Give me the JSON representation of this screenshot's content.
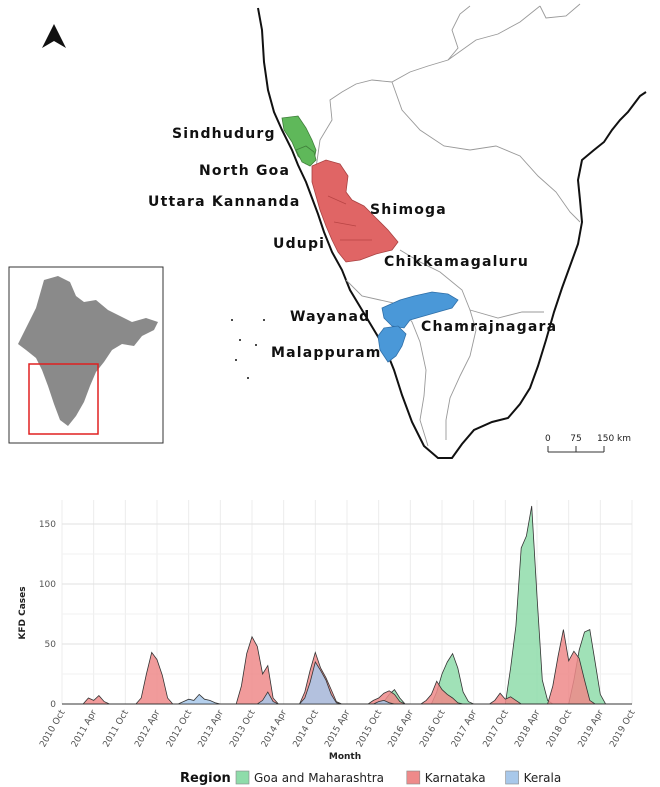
{
  "map": {
    "district_labels": {
      "sindhudurg": "Sindhudurg",
      "north_goa": "North Goa",
      "uttara_kannada": "Uttara Kannanda",
      "shimoga": "Shimoga",
      "udupi": "Udupi",
      "chikkamagaluru": "Chikkamagaluru",
      "wayanad": "Wayanad",
      "chamrajnagara": "Chamrajnagara",
      "malappuram": "Malappuram"
    },
    "scale_bar": {
      "ticks": [
        "0",
        "75",
        "150 km"
      ]
    },
    "colors": {
      "goa_maharashtra": "#5fb85a",
      "karnataka": "#e06565",
      "kerala": "#4a98d8",
      "inset_frame": "#e02020",
      "india_fill": "#8a8a8a"
    }
  },
  "chart_data": {
    "type": "area",
    "xlabel": "Month",
    "ylabel": "KFD Cases",
    "ylim": [
      0,
      170
    ],
    "y_ticks": [
      "0",
      "50",
      "100",
      "150"
    ],
    "x_ticks": [
      "2010 Oct",
      "2011 Apr",
      "2011 Oct",
      "2012 Apr",
      "2012 Oct",
      "2013 Apr",
      "2013 Oct",
      "2014 Apr",
      "2014 Oct",
      "2015 Apr",
      "2015 Oct",
      "2016 Apr",
      "2016 Oct",
      "2017 Apr",
      "2017 Oct",
      "2018 Apr",
      "2018 Oct",
      "2019 Apr",
      "2019 Oct"
    ],
    "x_unit": "month index from 2010 Oct (0) to 2019 Oct (108)",
    "legend_title": "Region",
    "legend_position": "bottom",
    "grid": true,
    "series": [
      {
        "name": "Goa and Maharashtra",
        "color": "#8fdcaa",
        "points": [
          [
            0,
            0
          ],
          [
            60,
            0
          ],
          [
            61,
            2
          ],
          [
            62,
            8
          ],
          [
            63,
            12
          ],
          [
            64,
            5
          ],
          [
            65,
            0
          ],
          [
            70,
            0
          ],
          [
            71,
            10
          ],
          [
            72,
            25
          ],
          [
            73,
            35
          ],
          [
            74,
            42
          ],
          [
            75,
            30
          ],
          [
            76,
            10
          ],
          [
            77,
            2
          ],
          [
            78,
            0
          ],
          [
            84,
            0
          ],
          [
            85,
            30
          ],
          [
            86,
            65
          ],
          [
            87,
            130
          ],
          [
            88,
            140
          ],
          [
            89,
            165
          ],
          [
            90,
            90
          ],
          [
            91,
            20
          ],
          [
            92,
            3
          ],
          [
            93,
            0
          ],
          [
            96,
            0
          ],
          [
            97,
            20
          ],
          [
            98,
            45
          ],
          [
            99,
            60
          ],
          [
            100,
            62
          ],
          [
            101,
            35
          ],
          [
            102,
            8
          ],
          [
            103,
            0
          ],
          [
            108,
            0
          ]
        ]
      },
      {
        "name": "Karnataka",
        "color": "#ee8a8a",
        "points": [
          [
            0,
            0
          ],
          [
            4,
            0
          ],
          [
            5,
            5
          ],
          [
            6,
            3
          ],
          [
            7,
            7
          ],
          [
            8,
            2
          ],
          [
            9,
            0
          ],
          [
            14,
            0
          ],
          [
            15,
            5
          ],
          [
            16,
            25
          ],
          [
            17,
            43
          ],
          [
            18,
            37
          ],
          [
            19,
            24
          ],
          [
            20,
            5
          ],
          [
            21,
            0
          ],
          [
            33,
            0
          ],
          [
            34,
            15
          ],
          [
            35,
            42
          ],
          [
            36,
            56
          ],
          [
            37,
            48
          ],
          [
            38,
            25
          ],
          [
            39,
            32
          ],
          [
            40,
            5
          ],
          [
            41,
            0
          ],
          [
            45,
            0
          ],
          [
            46,
            10
          ],
          [
            47,
            28
          ],
          [
            48,
            43
          ],
          [
            49,
            30
          ],
          [
            50,
            22
          ],
          [
            51,
            12
          ],
          [
            52,
            2
          ],
          [
            53,
            0
          ],
          [
            58,
            0
          ],
          [
            59,
            3
          ],
          [
            60,
            5
          ],
          [
            61,
            9
          ],
          [
            62,
            11
          ],
          [
            63,
            8
          ],
          [
            64,
            2
          ],
          [
            65,
            0
          ],
          [
            68,
            0
          ],
          [
            69,
            3
          ],
          [
            70,
            8
          ],
          [
            71,
            19
          ],
          [
            72,
            12
          ],
          [
            73,
            8
          ],
          [
            74,
            5
          ],
          [
            75,
            1
          ],
          [
            76,
            0
          ],
          [
            81,
            0
          ],
          [
            82,
            3
          ],
          [
            83,
            9
          ],
          [
            84,
            4
          ],
          [
            85,
            6
          ],
          [
            86,
            3
          ],
          [
            87,
            0
          ],
          [
            92,
            0
          ],
          [
            93,
            15
          ],
          [
            94,
            40
          ],
          [
            95,
            62
          ],
          [
            96,
            36
          ],
          [
            97,
            44
          ],
          [
            98,
            38
          ],
          [
            99,
            20
          ],
          [
            100,
            3
          ],
          [
            101,
            0
          ],
          [
            108,
            0
          ]
        ]
      },
      {
        "name": "Kerala",
        "color": "#a8c8ea",
        "points": [
          [
            0,
            0
          ],
          [
            22,
            0
          ],
          [
            23,
            2
          ],
          [
            24,
            4
          ],
          [
            25,
            3
          ],
          [
            26,
            8
          ],
          [
            27,
            4
          ],
          [
            28,
            3
          ],
          [
            29,
            1
          ],
          [
            30,
            0
          ],
          [
            37,
            0
          ],
          [
            38,
            3
          ],
          [
            39,
            10
          ],
          [
            40,
            2
          ],
          [
            41,
            0
          ],
          [
            45,
            0
          ],
          [
            46,
            5
          ],
          [
            47,
            18
          ],
          [
            48,
            35
          ],
          [
            49,
            28
          ],
          [
            50,
            20
          ],
          [
            51,
            8
          ],
          [
            52,
            1
          ],
          [
            53,
            0
          ],
          [
            59,
            0
          ],
          [
            60,
            2
          ],
          [
            61,
            3
          ],
          [
            62,
            1
          ],
          [
            63,
            0
          ],
          [
            108,
            0
          ]
        ]
      }
    ]
  }
}
